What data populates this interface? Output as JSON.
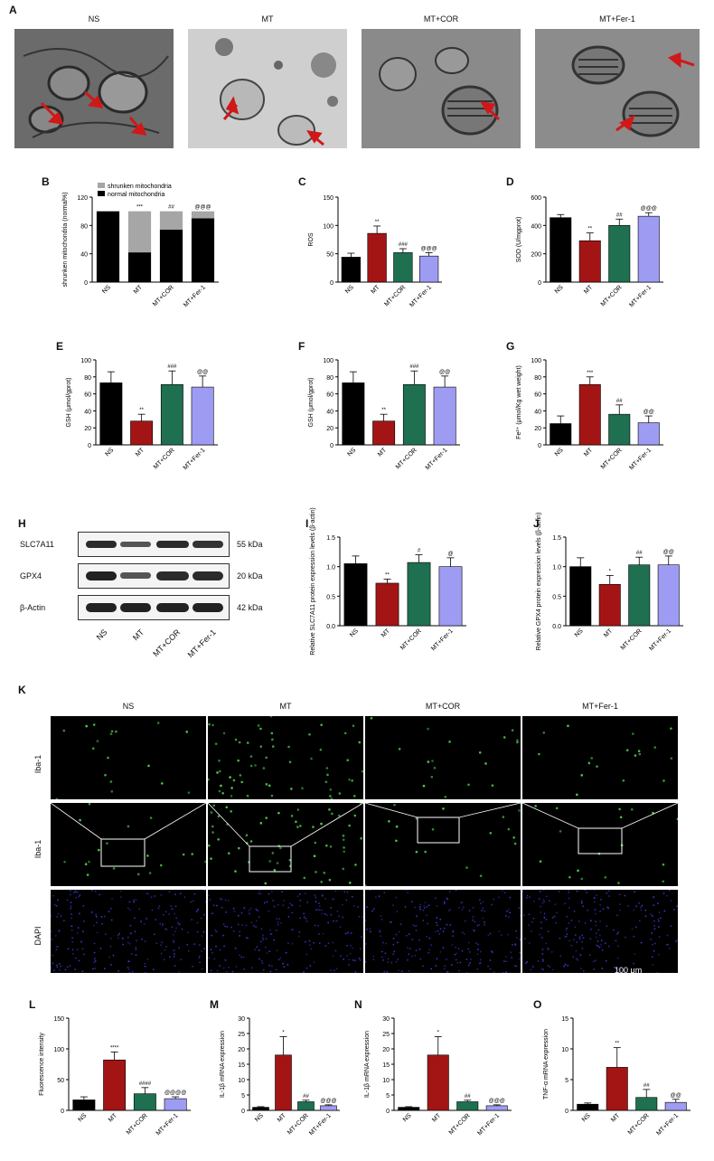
{
  "panel_a": {
    "letter": "A",
    "groups": [
      "NS",
      "MT",
      "MT+COR",
      "MT+Fer-1"
    ]
  },
  "panel_k": {
    "letter": "K",
    "groups": [
      "NS",
      "MT",
      "MT+COR",
      "MT+Fer-1"
    ],
    "rows": [
      "Iba-1",
      "Iba-1",
      "DAPI"
    ],
    "scale_bar": "100 μm"
  },
  "panel_h": {
    "letter": "H",
    "proteins": [
      "SLC7A11",
      "GPX4",
      "β-Actin"
    ],
    "sizes": [
      "55 kDa",
      "20 kDa",
      "42 kDa"
    ],
    "lanes": [
      "NS",
      "MT",
      "MT+COR",
      "MT+Fer-1"
    ]
  },
  "colors": {
    "NS": "#000000",
    "MT": "#a31515",
    "MT+COR": "#1e7050",
    "MT+Fer-1": "#9e9cf2",
    "shrunken": "#a6a6a6",
    "normal": "#000000"
  },
  "chart_data": [
    {
      "panel": "B",
      "type": "bar",
      "stacked": true,
      "categories": [
        "NS",
        "MT",
        "MT+COR",
        "MT+Fer-1"
      ],
      "ylabel": "shrunken mitochondria (normal%)",
      "ylim": [
        0,
        120
      ],
      "yticks": [
        0,
        40,
        80,
        120
      ],
      "series": [
        {
          "name": "normal mitochondria",
          "values": [
            100,
            42,
            74,
            90
          ]
        },
        {
          "name": "shrunken mitochondria",
          "values": [
            0,
            58,
            26,
            10
          ]
        }
      ],
      "annotations": [
        "",
        "***",
        "##",
        "@@@"
      ],
      "legend": "top-left"
    },
    {
      "panel": "C",
      "type": "bar",
      "categories": [
        "NS",
        "MT",
        "MT+COR",
        "MT+Fer-1"
      ],
      "ylabel": "ROS",
      "ylim": [
        0,
        150
      ],
      "yticks": [
        0,
        50,
        100,
        150
      ],
      "values": [
        44,
        86,
        52,
        46
      ],
      "errors": [
        7,
        13,
        7,
        6
      ],
      "annotations": [
        "",
        "**",
        "###",
        "@@@"
      ]
    },
    {
      "panel": "D",
      "type": "bar",
      "categories": [
        "NS",
        "MT",
        "MT+COR",
        "MT+Fer-1"
      ],
      "ylabel": "SOD (U/mgprot)",
      "ylim": [
        0,
        600
      ],
      "yticks": [
        0,
        200,
        400,
        600
      ],
      "values": [
        455,
        292,
        400,
        465
      ],
      "errors": [
        22,
        55,
        45,
        25
      ],
      "annotations": [
        "",
        "**",
        "##",
        "@@@"
      ]
    },
    {
      "panel": "E",
      "type": "bar",
      "categories": [
        "NS",
        "MT",
        "MT+COR",
        "MT+Fer-1"
      ],
      "ylabel": "GSH (μmol/gprot)",
      "ylim": [
        0,
        100
      ],
      "yticks": [
        0,
        20,
        40,
        60,
        80,
        100
      ],
      "values": [
        73,
        28,
        71,
        68
      ],
      "errors": [
        13,
        8,
        16,
        13
      ],
      "annotations": [
        "",
        "**",
        "###",
        "@@"
      ]
    },
    {
      "panel": "F",
      "type": "bar",
      "categories": [
        "NS",
        "MT",
        "MT+COR",
        "MT+Fer-1"
      ],
      "ylabel": "GSH (μmol/gprot)",
      "ylim": [
        0,
        100
      ],
      "yticks": [
        0,
        20,
        40,
        60,
        80,
        100
      ],
      "values": [
        73,
        28,
        71,
        68
      ],
      "errors": [
        13,
        8,
        16,
        13
      ],
      "annotations": [
        "",
        "**",
        "###",
        "@@"
      ]
    },
    {
      "panel": "G",
      "type": "bar",
      "categories": [
        "NS",
        "MT",
        "MT+COR",
        "MT+Fer-1"
      ],
      "ylabel": "Fe²⁺ (μmol/Kg wet weight)",
      "ylim": [
        0,
        100
      ],
      "yticks": [
        0,
        20,
        40,
        60,
        80,
        100
      ],
      "values": [
        25,
        71,
        36,
        26
      ],
      "errors": [
        9,
        9,
        11,
        8
      ],
      "annotations": [
        "",
        "***",
        "##",
        "@@"
      ]
    },
    {
      "panel": "I",
      "type": "bar",
      "categories": [
        "NS",
        "MT",
        "MT+COR",
        "MT+Fer-1"
      ],
      "ylabel": "Relative SLC7A11 protein expression levels (β-actin)",
      "ylim": [
        0,
        1.5
      ],
      "yticks": [
        0.0,
        0.5,
        1.0,
        1.5
      ],
      "values": [
        1.05,
        0.72,
        1.07,
        1.0
      ],
      "errors": [
        0.13,
        0.07,
        0.13,
        0.15
      ],
      "annotations": [
        "",
        "**",
        "#",
        "@"
      ]
    },
    {
      "panel": "J",
      "type": "bar",
      "categories": [
        "NS",
        "MT",
        "MT+COR",
        "MT+Fer-1"
      ],
      "ylabel": "Relative GPX4 protein expression levels (β-actin)",
      "ylim": [
        0,
        1.5
      ],
      "yticks": [
        0.0,
        0.5,
        1.0,
        1.5
      ],
      "values": [
        1.0,
        0.7,
        1.03,
        1.03
      ],
      "errors": [
        0.15,
        0.15,
        0.13,
        0.15
      ],
      "annotations": [
        "",
        "*",
        "##",
        "@@"
      ]
    },
    {
      "panel": "L",
      "type": "bar",
      "categories": [
        "NS",
        "MT",
        "MT+COR",
        "MT+Fer-1"
      ],
      "ylabel": "Fluorescence intensity",
      "ylim": [
        0,
        150
      ],
      "yticks": [
        0,
        50,
        100,
        150
      ],
      "values": [
        17,
        82,
        27,
        19
      ],
      "errors": [
        5,
        13,
        10,
        3
      ],
      "annotations": [
        "",
        "****",
        "####",
        "@@@@"
      ]
    },
    {
      "panel": "M",
      "type": "bar",
      "categories": [
        "NS",
        "MT",
        "MT+COR",
        "MT+Fer-1"
      ],
      "ylabel": "IL-1β mRNA expression",
      "ylim": [
        0,
        30
      ],
      "yticks": [
        0,
        5,
        10,
        15,
        20,
        25,
        30
      ],
      "values": [
        1,
        18,
        2.8,
        1.5
      ],
      "errors": [
        0.2,
        6,
        0.5,
        0.3
      ],
      "annotations": [
        "",
        "*",
        "##",
        "@@@"
      ]
    },
    {
      "panel": "N",
      "type": "bar",
      "categories": [
        "NS",
        "MT",
        "MT+COR",
        "MT+Fer-1"
      ],
      "ylabel": "IL-1β mRNA expression",
      "ylim": [
        0,
        30
      ],
      "yticks": [
        0,
        5,
        10,
        15,
        20,
        25,
        30
      ],
      "values": [
        1,
        18,
        2.8,
        1.5
      ],
      "errors": [
        0.2,
        6,
        0.5,
        0.3
      ],
      "annotations": [
        "",
        "*",
        "##",
        "@@@"
      ]
    },
    {
      "panel": "O",
      "type": "bar",
      "categories": [
        "NS",
        "MT",
        "MT+COR",
        "MT+Fer-1"
      ],
      "ylabel": "TNF-α mRNA expression",
      "ylim": [
        0,
        15
      ],
      "yticks": [
        0,
        5,
        10,
        15
      ],
      "values": [
        1,
        7,
        2.1,
        1.3
      ],
      "errors": [
        0.2,
        3.2,
        1.3,
        0.5
      ],
      "annotations": [
        "",
        "**",
        "##",
        "@@"
      ]
    }
  ]
}
